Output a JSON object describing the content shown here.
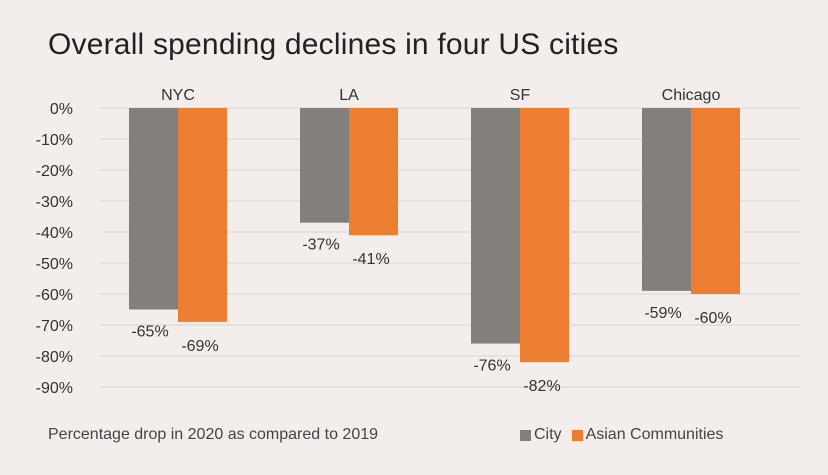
{
  "title": "Overall spending declines in four US cities",
  "footnote": "Percentage drop in 2020 as compared to 2019",
  "colors": {
    "city": "#837f7b",
    "asian": "#ed7d31",
    "grid": "#d9d4d0",
    "text": "#333333"
  },
  "chart_data": {
    "type": "bar",
    "title": "Overall spending declines in four US cities",
    "categories": [
      "NYC",
      "LA",
      "SF",
      "Chicago"
    ],
    "series": [
      {
        "name": "City",
        "values": [
          -65,
          -37,
          -76,
          -59
        ],
        "labels": [
          "-65%",
          "-37%",
          "-76%",
          "-59%"
        ]
      },
      {
        "name": "Asian Communities",
        "values": [
          -69,
          -41,
          -82,
          -60
        ],
        "labels": [
          "-69%",
          "-41%",
          "-82%",
          "-60%"
        ]
      }
    ],
    "yticks": [
      "0%",
      "-10%",
      "-20%",
      "-30%",
      "-40%",
      "-50%",
      "-60%",
      "-70%",
      "-80%",
      "-90%"
    ],
    "ylim": [
      -90,
      0
    ],
    "grid": true,
    "legend": "bottom-right"
  }
}
